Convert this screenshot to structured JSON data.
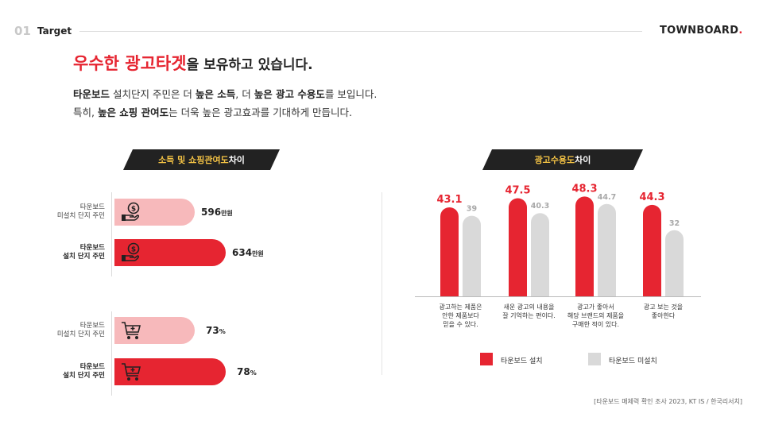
{
  "header": {
    "number": "01",
    "label": "Target",
    "logo_text": "TOWNBOARD",
    "logo_dot": "."
  },
  "headline": {
    "red": "우수한 광고타겟",
    "dark": "을 보유하고 있습니다."
  },
  "subline1": {
    "p1": "타운보드",
    "p2": " 설치단지 주민은 더 ",
    "p3": "높은 소득",
    "p4": ", 더 ",
    "p5": "높은 광고 수용도",
    "p6": "를 보입니다."
  },
  "subline2": {
    "p1": "특히, ",
    "p2": "높은 쇼핑 관여도",
    "p3": "는 더욱 높은 광고효과를 기대하게 만듭니다."
  },
  "left_section": {
    "title_em": "소득 및 쇼핑관여도",
    "title_rest": " 차이",
    "income_rows": [
      {
        "label_l1": "타운보드",
        "label_l2": "미설치 단지 주민",
        "value": 596,
        "value_text": "596",
        "unit": "만원"
      },
      {
        "label_l1": "타운보드",
        "label_l2": "설치 단지 주민",
        "value": 634,
        "value_text": "634",
        "unit": "만원"
      }
    ],
    "shopping_rows": [
      {
        "label_l1": "타운보드",
        "label_l2": "미설치 단지 주민",
        "value": 73,
        "value_text": "73",
        "unit": "%"
      },
      {
        "label_l1": "타운보드",
        "label_l2": "설치 단지 주민",
        "value": 78,
        "value_text": "78",
        "unit": "%"
      }
    ]
  },
  "chart_data": [
    {
      "type": "bar",
      "orientation": "horizontal",
      "categories": [
        "타운보드 미설치 단지 주민",
        "타운보드 설치 단지 주민"
      ],
      "values": [
        596,
        634
      ],
      "unit": "만원"
    },
    {
      "type": "bar",
      "orientation": "horizontal",
      "categories": [
        "타운보드 미설치 단지 주민",
        "타운보드 설치 단지 주민"
      ],
      "values": [
        73,
        78
      ],
      "unit": "%"
    },
    {
      "type": "bar",
      "orientation": "vertical",
      "title": "광고수용도 차이",
      "categories": [
        [
          "광고하는 제품은",
          "안한 제품보다",
          "믿을 수 있다."
        ],
        [
          "새운 광고의 내용을",
          "잘 기억하는 편이다."
        ],
        [
          "광고가 좋아서",
          "해당 브랜드의 제품을",
          "구매한 적이 있다."
        ],
        [
          "광고 보는 것을",
          "좋아한다"
        ]
      ],
      "series": [
        {
          "name": "타운보드 설치",
          "color": "#e62531",
          "values": [
            43.1,
            47.5,
            48.3,
            44.3
          ]
        },
        {
          "name": "타운보드 미설치",
          "color": "#d9d9d9",
          "values": [
            39,
            40.3,
            44.7,
            32
          ]
        }
      ],
      "legend": "bottom"
    }
  ],
  "right_section": {
    "title_em": "광고수용도",
    "title_rest": " 차이"
  },
  "colors": {
    "accent": "#e62531",
    "light": "#f7b9bb",
    "gray": "#d9d9d9",
    "highlight": "#f6c445"
  },
  "icons": {
    "income": "hand-coin-icon",
    "shopping": "shopping-cart-icon"
  },
  "source": "[타운보드 매체력 확인 조사 2023, KT IS / 한국리서치]"
}
